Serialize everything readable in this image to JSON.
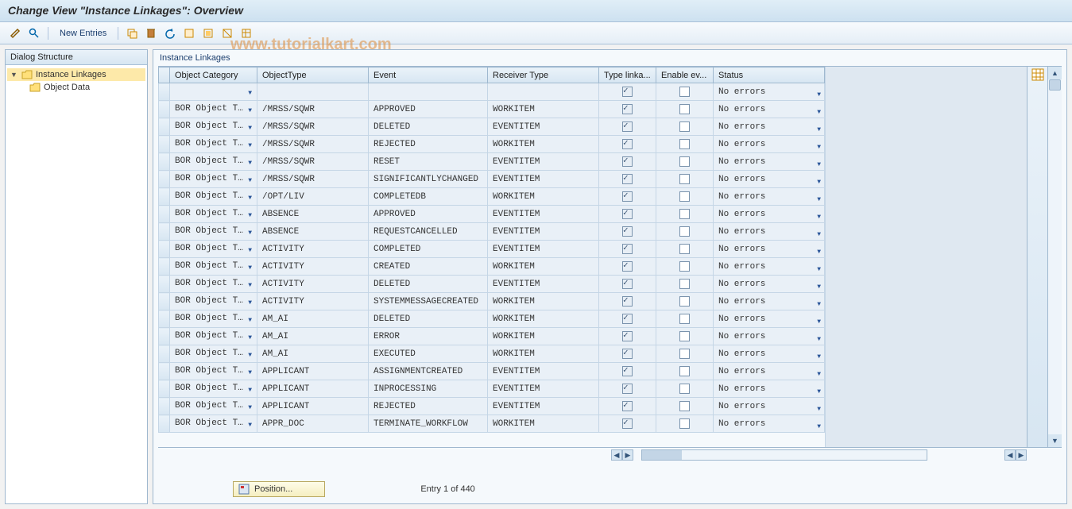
{
  "page_title": "Change View \"Instance Linkages\": Overview",
  "toolbar": {
    "new_entries_label": "New Entries"
  },
  "watermark": "www.tutorialkart.com",
  "left_panel": {
    "header": "Dialog Structure",
    "items": [
      {
        "label": "Instance Linkages",
        "selected": true,
        "children": [
          {
            "label": "Object Data"
          }
        ]
      }
    ]
  },
  "grid": {
    "title": "Instance Linkages",
    "columns": [
      "Object Category",
      "ObjectType",
      "Event",
      "Receiver Type",
      "Type linka...",
      "Enable ev...",
      "Status"
    ],
    "status_default": "No errors",
    "rows": [
      {
        "objcat": "",
        "objtype": "",
        "event": "",
        "recv": "",
        "typelink": true,
        "enable": false
      },
      {
        "objcat": "BOR Object T…",
        "objtype": "/MRSS/SQWR",
        "event": "APPROVED",
        "recv": "WORKITEM",
        "typelink": true,
        "enable": false
      },
      {
        "objcat": "BOR Object T…",
        "objtype": "/MRSS/SQWR",
        "event": "DELETED",
        "recv": "EVENTITEM",
        "typelink": true,
        "enable": false
      },
      {
        "objcat": "BOR Object T…",
        "objtype": "/MRSS/SQWR",
        "event": "REJECTED",
        "recv": "WORKITEM",
        "typelink": true,
        "enable": false
      },
      {
        "objcat": "BOR Object T…",
        "objtype": "/MRSS/SQWR",
        "event": "RESET",
        "recv": "EVENTITEM",
        "typelink": true,
        "enable": false
      },
      {
        "objcat": "BOR Object T…",
        "objtype": "/MRSS/SQWR",
        "event": "SIGNIFICANTLYCHANGED",
        "recv": "EVENTITEM",
        "typelink": true,
        "enable": false
      },
      {
        "objcat": "BOR Object T…",
        "objtype": "/OPT/LIV",
        "event": "COMPLETEDB",
        "recv": "WORKITEM",
        "typelink": true,
        "enable": false
      },
      {
        "objcat": "BOR Object T…",
        "objtype": "ABSENCE",
        "event": "APPROVED",
        "recv": "EVENTITEM",
        "typelink": true,
        "enable": false
      },
      {
        "objcat": "BOR Object T…",
        "objtype": "ABSENCE",
        "event": "REQUESTCANCELLED",
        "recv": "EVENTITEM",
        "typelink": true,
        "enable": false
      },
      {
        "objcat": "BOR Object T…",
        "objtype": "ACTIVITY",
        "event": "COMPLETED",
        "recv": "EVENTITEM",
        "typelink": true,
        "enable": false
      },
      {
        "objcat": "BOR Object T…",
        "objtype": "ACTIVITY",
        "event": "CREATED",
        "recv": "WORKITEM",
        "typelink": true,
        "enable": false
      },
      {
        "objcat": "BOR Object T…",
        "objtype": "ACTIVITY",
        "event": "DELETED",
        "recv": "EVENTITEM",
        "typelink": true,
        "enable": false
      },
      {
        "objcat": "BOR Object T…",
        "objtype": "ACTIVITY",
        "event": "SYSTEMMESSAGECREATED",
        "recv": "WORKITEM",
        "typelink": true,
        "enable": false
      },
      {
        "objcat": "BOR Object T…",
        "objtype": "AM_AI",
        "event": "DELETED",
        "recv": "WORKITEM",
        "typelink": true,
        "enable": false
      },
      {
        "objcat": "BOR Object T…",
        "objtype": "AM_AI",
        "event": "ERROR",
        "recv": "WORKITEM",
        "typelink": true,
        "enable": false
      },
      {
        "objcat": "BOR Object T…",
        "objtype": "AM_AI",
        "event": "EXECUTED",
        "recv": "WORKITEM",
        "typelink": true,
        "enable": false
      },
      {
        "objcat": "BOR Object T…",
        "objtype": "APPLICANT",
        "event": "ASSIGNMENTCREATED",
        "recv": "EVENTITEM",
        "typelink": true,
        "enable": false
      },
      {
        "objcat": "BOR Object T…",
        "objtype": "APPLICANT",
        "event": "INPROCESSING",
        "recv": "EVENTITEM",
        "typelink": true,
        "enable": false
      },
      {
        "objcat": "BOR Object T…",
        "objtype": "APPLICANT",
        "event": "REJECTED",
        "recv": "EVENTITEM",
        "typelink": true,
        "enable": false
      },
      {
        "objcat": "BOR Object T…",
        "objtype": "APPR_DOC",
        "event": "TERMINATE_WORKFLOW",
        "recv": "WORKITEM",
        "typelink": true,
        "enable": false
      }
    ]
  },
  "footer": {
    "position_label": "Position...",
    "entry_info": "Entry 1 of 440"
  },
  "colors": {
    "header_grad_top": "#e0eef7",
    "header_grad_bot": "#cde1f0",
    "border": "#9fb8cf",
    "cell_bg": "#e9f0f7",
    "accent": "#1a3d6d"
  }
}
